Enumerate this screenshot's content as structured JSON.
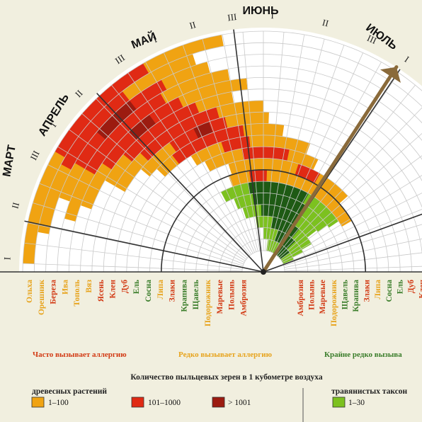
{
  "months": [
    "МАРТ",
    "АПРЕЛЬ",
    "МАЙ",
    "ИЮНЬ",
    "ИЮЛЬ"
  ],
  "decades": [
    "I",
    "II",
    "III",
    "I",
    "II",
    "III",
    "I",
    "II",
    "III",
    "I",
    "II",
    "III",
    "I",
    "II"
  ],
  "plants_left": [
    {
      "name": "Ольха",
      "color": "#e7a31c"
    },
    {
      "name": "Орешник",
      "color": "#e7a31c"
    },
    {
      "name": "Береза",
      "color": "#d23a14"
    },
    {
      "name": "Ива",
      "color": "#e7a31c"
    },
    {
      "name": "Тополь",
      "color": "#e7a31c"
    },
    {
      "name": "Вяз",
      "color": "#e7a31c"
    },
    {
      "name": "Ясень",
      "color": "#d23a14"
    },
    {
      "name": "Клен",
      "color": "#d23a14"
    },
    {
      "name": "Дуб",
      "color": "#d23a14"
    },
    {
      "name": "Ель",
      "color": "#3a7d2a"
    },
    {
      "name": "Сосна",
      "color": "#3a7d2a"
    },
    {
      "name": "Липа",
      "color": "#e7a31c"
    },
    {
      "name": "Злаки",
      "color": "#d23a14"
    },
    {
      "name": "Крапива",
      "color": "#3a7d2a"
    },
    {
      "name": "Щавель",
      "color": "#3a7d2a"
    },
    {
      "name": "Подорожник",
      "color": "#e7a31c"
    },
    {
      "name": "Маревые",
      "color": "#d23a14"
    },
    {
      "name": "Полынь",
      "color": "#d23a14"
    },
    {
      "name": "Амброзия",
      "color": "#d23a14"
    }
  ],
  "plants_right": [
    {
      "name": "Амброзия",
      "color": "#d23a14"
    },
    {
      "name": "Полынь",
      "color": "#d23a14"
    },
    {
      "name": "Маревые",
      "color": "#d23a14"
    },
    {
      "name": "Подорожник",
      "color": "#e7a31c"
    },
    {
      "name": "Щавель",
      "color": "#3a7d2a"
    },
    {
      "name": "Крапива",
      "color": "#3a7d2a"
    },
    {
      "name": "Злаки",
      "color": "#d23a14"
    },
    {
      "name": "Липа",
      "color": "#e7a31c"
    },
    {
      "name": "Сосна",
      "color": "#3a7d2a"
    },
    {
      "name": "Ель",
      "color": "#3a7d2a"
    },
    {
      "name": "Дуб",
      "color": "#d23a14"
    },
    {
      "name": "Клен",
      "color": "#d23a14"
    }
  ],
  "legend": {
    "often": "Часто вызывает аллергию",
    "rarely": "Редко вызывает аллергию",
    "very_rarely": "Крайне редко вызыва",
    "title": "Количество пыльцевых зерен в 1 кубометре воздуха",
    "trees": "древесных растений",
    "grasses": "травянистых таксон",
    "swatches": [
      {
        "label": "1–100",
        "color": "#f0a312"
      },
      {
        "label": "101–1000",
        "color": "#e02a14"
      },
      {
        "label": "> 1001",
        "color": "#9c1b10"
      },
      {
        "label": "1–30",
        "color": "#7cc11f"
      }
    ]
  },
  "colors": {
    "low": "#f0a312",
    "mid": "#e02a14",
    "high": "#9c1b10",
    "grass_low": "#7cc11f",
    "grass_high": "#1e5a14",
    "grid": "#c9c9c9",
    "arrow": "#8a6a3a",
    "often_color": "#d23a14",
    "rare_color": "#e7a31c",
    "very_rare_color": "#3a7d2a"
  }
}
